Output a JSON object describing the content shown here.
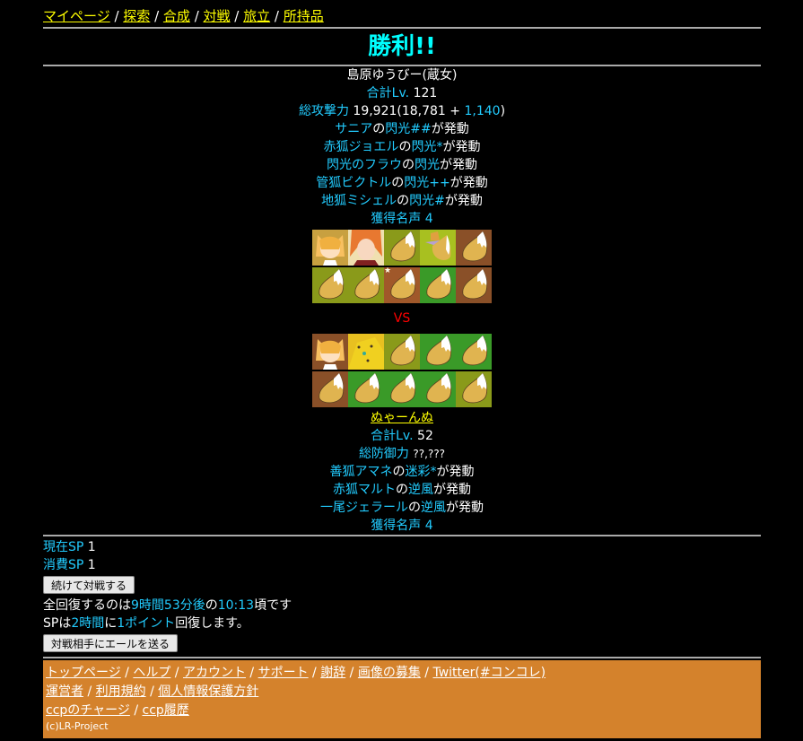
{
  "nav": [
    "マイページ",
    "探索",
    "合成",
    "対戦",
    "旅立",
    "所持品"
  ],
  "title": "勝利!!",
  "player": {
    "name": "島原ゆうびー(蔵女)",
    "lv_label": "合計Lv.",
    "lv": "121",
    "atk_label": "総攻撃力",
    "atk_total": "19,921(18,781 + ",
    "atk_bonus": "1,140",
    ")": ")",
    "skills": [
      [
        "サニア",
        "の",
        "閃光##",
        "が発動"
      ],
      [
        "赤狐ジョエル",
        "の",
        "閃光*",
        "が発動"
      ],
      [
        "閃光のフラウ",
        "の",
        "閃光",
        "が発動"
      ],
      [
        "管狐ビクトル",
        "の",
        "閃光++",
        "が発動"
      ],
      [
        "地狐ミシェル",
        "の",
        "閃光#",
        "が発動"
      ]
    ],
    "fame_label": "獲得名声",
    "fame": "4"
  },
  "player_tiles": [
    [
      "#c8a040",
      "#f0e0b0",
      "#8a9a1a",
      "#a8c020",
      "#8a5028"
    ],
    [
      "#8a9a1a",
      "#8a9a1a",
      "#a0582a",
      "#3a9a28",
      "#8a5028"
    ]
  ],
  "player_tile_types": [
    [
      "portrait-fox-girl",
      "portrait-orange-hair",
      "tail",
      "portrait-small-fox",
      "tail"
    ],
    [
      "tail",
      "tail",
      "tail-starred",
      "tail",
      "tail"
    ]
  ],
  "vs": "VS",
  "opponent_tiles": [
    [
      "#8a5028",
      "#e8c020",
      "#8a9a1a",
      "#3a9a28",
      "#3a9a28"
    ],
    [
      "#8a5028",
      "#3a9a28",
      "#3a9a28",
      "#3a9a28",
      "#8a9a1a"
    ]
  ],
  "opponent_tile_types": [
    [
      "portrait-fox-girl",
      "portrait-cheetah",
      "tail",
      "tail",
      "tail"
    ],
    [
      "tail",
      "tail",
      "tail",
      "tail",
      "tail"
    ]
  ],
  "opponent": {
    "name": "ぬゃーんぬ",
    "lv_label": "合計Lv.",
    "lv": "52",
    "def_label": "総防御力",
    "def": "??,???",
    "skills": [
      [
        "善狐アマネ",
        "の",
        "迷彩*",
        "が発動"
      ],
      [
        "赤狐マルト",
        "の",
        "逆風",
        "が発動"
      ],
      [
        "一尾ジェラール",
        "の",
        "逆風",
        "が発動"
      ]
    ],
    "fame_label": "獲得名声",
    "fame": "4"
  },
  "sp": {
    "current_label": "現在SP",
    "current": "1",
    "used_label": "消費SP",
    "used": "1",
    "continue_button": "続けて対戦する",
    "recover": [
      "全回復するのは",
      "9時間53分後",
      "の",
      "10:13",
      "頃です"
    ],
    "rate": [
      "SPは",
      "2時間",
      "に",
      "1ポイント",
      "回復します。"
    ],
    "cheer_button": "対戦相手にエールを送る"
  },
  "footer": {
    "row1": [
      "トップページ",
      "ヘルプ",
      "アカウント",
      "サポート",
      "謝辞",
      "画像の募集",
      "Twitter(#コンコレ)"
    ],
    "row2": [
      "運営者",
      "利用規約",
      "個人情報保護方針"
    ],
    "row3": [
      "ccpのチャージ",
      "ccp履歴"
    ],
    "copyright": "(c)LR-Project"
  },
  "colors": {
    "link": "#ffff00",
    "accent": "#22ccff",
    "title": "#00ffff",
    "vs": "#ff0000",
    "footer_bg": "#d4822c"
  }
}
